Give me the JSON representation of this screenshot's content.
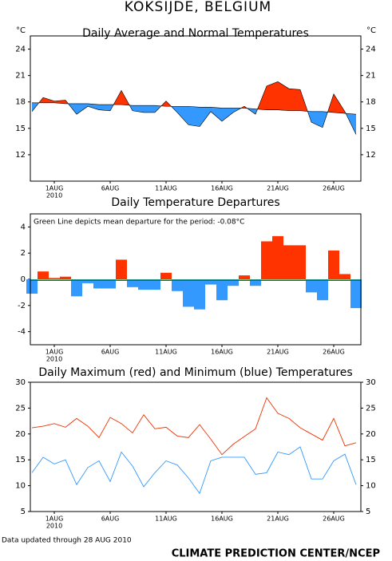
{
  "title": "KOKSIJDE, BELGIUM",
  "footer_left": "Data updated through 28 AUG 2010",
  "footer_right": "CLIMATE PREDICTION CENTER/NCEP",
  "chart_data": [
    {
      "type": "band",
      "title": "Daily Average and Normal Temperatures",
      "y_unit": "°C",
      "categories": [
        null,
        null,
        "1AUG",
        null,
        null,
        null,
        null,
        "6AUG",
        null,
        null,
        null,
        null,
        "11AUG",
        null,
        null,
        null,
        null,
        "16AUG",
        null,
        null,
        null,
        null,
        "21AUG",
        null,
        null,
        null,
        null,
        "26AUG",
        null,
        null
      ],
      "x_sublabel": "2010",
      "series": [
        {
          "color": "#000000",
          "values": [
            16.9,
            18.5,
            18.1,
            18.2,
            16.6,
            17.5,
            17.1,
            17.0,
            19.3,
            17.0,
            16.8,
            16.8,
            18.1,
            16.8,
            15.4,
            15.2,
            16.9,
            15.8,
            16.8,
            17.5,
            16.6,
            19.8,
            20.3,
            19.5,
            19.4,
            15.7,
            15.1,
            18.9,
            16.9,
            14.3
          ]
        },
        {
          "color": "#000000",
          "values": [
            17.9,
            17.9,
            17.9,
            17.8,
            17.8,
            17.8,
            17.7,
            17.7,
            17.7,
            17.6,
            17.6,
            17.6,
            17.5,
            17.5,
            17.5,
            17.4,
            17.4,
            17.3,
            17.3,
            17.3,
            17.2,
            17.1,
            17.1,
            17.0,
            17.0,
            16.9,
            16.9,
            16.8,
            16.7,
            16.6
          ]
        }
      ],
      "above_color": "#ff3300",
      "below_color": "#3399ff",
      "ylim": [
        9,
        25.5
      ],
      "yticks": [
        12,
        15,
        18,
        21,
        24
      ]
    },
    {
      "type": "bar",
      "title": "Daily Temperature Departures",
      "annotation": "Green Line depicts mean departure for the period: -0.08°C",
      "mean_line": -0.08,
      "mean_color": "#008800",
      "categories": [
        null,
        null,
        "1AUG",
        null,
        null,
        null,
        null,
        "6AUG",
        null,
        null,
        null,
        null,
        "11AUG",
        null,
        null,
        null,
        null,
        "16AUG",
        null,
        null,
        null,
        null,
        "21AUG",
        null,
        null,
        null,
        null,
        "26AUG",
        null,
        null
      ],
      "x_sublabel": "2010",
      "values": [
        -1.1,
        0.6,
        0.1,
        0.2,
        -1.3,
        -0.3,
        -0.7,
        -0.7,
        1.5,
        -0.6,
        -0.8,
        -0.8,
        0.5,
        -0.9,
        -2.1,
        -2.3,
        -0.4,
        -1.6,
        -0.5,
        0.3,
        -0.5,
        2.9,
        3.3,
        2.6,
        2.6,
        -1.0,
        -1.6,
        2.2,
        0.4,
        -2.2
      ],
      "above_color": "#ff3300",
      "below_color": "#3399ff",
      "ylim": [
        -5,
        5
      ],
      "yticks": [
        -4,
        -2,
        0,
        2,
        4
      ]
    },
    {
      "type": "line",
      "title": "Daily Maximum (red) and Minimum (blue) Temperatures",
      "categories": [
        null,
        null,
        "1AUG",
        null,
        null,
        null,
        null,
        "6AUG",
        null,
        null,
        null,
        null,
        "11AUG",
        null,
        null,
        null,
        null,
        "16AUG",
        null,
        null,
        null,
        null,
        "21AUG",
        null,
        null,
        null,
        null,
        "26AUG",
        null,
        null
      ],
      "x_sublabel": "2010",
      "series": [
        {
          "color": "#ee3300",
          "values": [
            21.2,
            21.5,
            22.0,
            21.3,
            23.0,
            21.5,
            19.3,
            23.2,
            22.0,
            20.2,
            23.7,
            21.0,
            21.3,
            19.6,
            19.3,
            21.8,
            19.0,
            16.0,
            18.0,
            19.5,
            21.0,
            27.0,
            24.0,
            23.0,
            21.2,
            20.0,
            18.8,
            23.0,
            17.7,
            18.3
          ]
        },
        {
          "color": "#3399ff",
          "values": [
            12.5,
            15.5,
            14.2,
            15.0,
            10.2,
            13.5,
            14.8,
            10.8,
            16.5,
            13.8,
            9.8,
            12.5,
            14.8,
            14.0,
            11.5,
            8.5,
            14.8,
            15.5,
            15.5,
            15.5,
            12.2,
            12.5,
            16.5,
            16.0,
            17.5,
            11.3,
            11.3,
            14.8,
            16.1,
            10.2
          ]
        }
      ],
      "ylim": [
        5,
        30
      ],
      "yticks": [
        5,
        10,
        15,
        20,
        25,
        30
      ]
    }
  ]
}
